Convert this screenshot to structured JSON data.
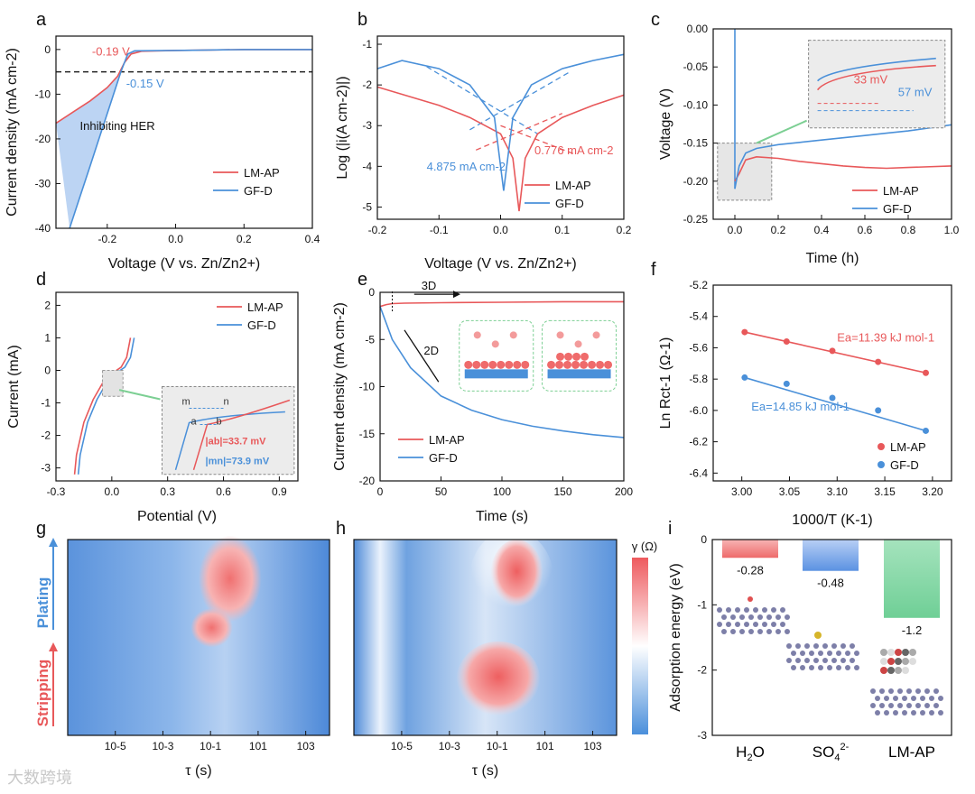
{
  "chart_data": [
    {
      "panel": "a",
      "type": "line",
      "xlabel": "Voltage (V vs. Zn/Zn2+)",
      "ylabel": "Current density (mA cm-2)",
      "xlim": [
        -0.35,
        0.4
      ],
      "ylim": [
        -40,
        3
      ],
      "xticks": [
        "-0.2",
        "0.0",
        "0.2",
        "0.4"
      ],
      "yticks": [
        "0",
        "-10",
        "-20",
        "-30",
        "-40"
      ],
      "series": [
        {
          "name": "LM-AP",
          "color": "#e8585a",
          "x": [
            -0.35,
            -0.3,
            -0.25,
            -0.2,
            -0.17,
            -0.15,
            -0.13,
            -0.1,
            0,
            0.1,
            0.2,
            0.3,
            0.4
          ],
          "y": [
            -16.5,
            -14,
            -11.5,
            -8.5,
            -6,
            -3,
            -1,
            -0.4,
            -0.2,
            -0.1,
            0,
            0,
            0
          ]
        },
        {
          "name": "GF-D",
          "color": "#4a90d9",
          "x": [
            -0.31,
            -0.28,
            -0.25,
            -0.22,
            -0.19,
            -0.16,
            -0.14,
            -0.12,
            0,
            0.1,
            0.2,
            0.3,
            0.4
          ],
          "y": [
            -40,
            -33,
            -26,
            -19,
            -12,
            -5,
            -1,
            -0.3,
            -0.2,
            -0.1,
            0,
            0,
            0
          ]
        }
      ],
      "annotations": [
        "-0.19 V",
        "-0.15 V",
        "Inhibiting HER"
      ]
    },
    {
      "panel": "b",
      "type": "line",
      "xlabel": "Voltage (V vs. Zn/Zn2+)",
      "ylabel": "Log (|i(A cm-2)|)",
      "xlim": [
        -0.2,
        0.2
      ],
      "ylim": [
        -5.3,
        -0.8
      ],
      "xticks": [
        "-0.2",
        "-0.1",
        "0.0",
        "0.1",
        "0.2"
      ],
      "yticks": [
        "-1",
        "-2",
        "-3",
        "-4",
        "-5"
      ],
      "series": [
        {
          "name": "LM-AP",
          "color": "#e8585a",
          "x": [
            -0.2,
            -0.1,
            -0.05,
            0,
            0.02,
            0.03,
            0.04,
            0.06,
            0.1,
            0.15,
            0.2
          ],
          "y": [
            -2.05,
            -2.5,
            -2.8,
            -3.2,
            -3.8,
            -5.1,
            -3.8,
            -3.2,
            -2.8,
            -2.5,
            -2.25
          ]
        },
        {
          "name": "GF-D",
          "color": "#4a90d9",
          "x": [
            -0.2,
            -0.16,
            -0.1,
            -0.05,
            -0.01,
            0.005,
            0.02,
            0.05,
            0.1,
            0.15,
            0.2
          ],
          "y": [
            -1.6,
            -1.4,
            -1.6,
            -2.0,
            -2.8,
            -4.6,
            -2.8,
            -2.0,
            -1.6,
            -1.4,
            -1.25
          ]
        }
      ],
      "annotations": [
        "4.875 mA cm-2",
        "0.776 mA cm-2"
      ]
    },
    {
      "panel": "c",
      "type": "line",
      "xlabel": "Time (h)",
      "ylabel": "Voltage (V)",
      "xlim": [
        -0.1,
        1.0
      ],
      "ylim": [
        -0.25,
        0.0
      ],
      "xticks": [
        "0.0",
        "0.2",
        "0.4",
        "0.6",
        "0.8",
        "1.0"
      ],
      "yticks": [
        "0.00",
        "-0.05",
        "-0.10",
        "-0.15",
        "-0.20",
        "-0.25"
      ],
      "series": [
        {
          "name": "LM-AP",
          "color": "#e8585a",
          "x": [
            0,
            0.02,
            0.05,
            0.1,
            0.2,
            0.3,
            0.4,
            0.5,
            0.6,
            0.7,
            0.8,
            1.0
          ],
          "y": [
            -0.2,
            -0.19,
            -0.172,
            -0.168,
            -0.17,
            -0.174,
            -0.177,
            -0.18,
            -0.182,
            -0.183,
            -0.182,
            -0.18
          ]
        },
        {
          "name": "GF-D",
          "color": "#4a90d9",
          "x": [
            0,
            0.02,
            0.05,
            0.1,
            0.2,
            0.3,
            0.4,
            0.5,
            0.6,
            0.7,
            0.8,
            1.0
          ],
          "y": [
            -0.21,
            -0.18,
            -0.163,
            -0.157,
            -0.152,
            -0.149,
            -0.146,
            -0.143,
            -0.14,
            -0.137,
            -0.134,
            -0.126
          ]
        }
      ],
      "annotations": [
        "33 mV",
        "57 mV"
      ]
    },
    {
      "panel": "d",
      "type": "line",
      "xlabel": "Potential (V)",
      "ylabel": "Current (mA)",
      "xlim": [
        -0.3,
        1.0
      ],
      "ylim": [
        -3.4,
        2.4
      ],
      "xticks": [
        "-0.3",
        "0.0",
        "0.3",
        "0.6",
        "0.9"
      ],
      "yticks": [
        "2",
        "1",
        "0",
        "-1",
        "-2",
        "-3"
      ],
      "series": [
        {
          "name": "LM-AP",
          "color": "#e8585a"
        },
        {
          "name": "GF-D",
          "color": "#4a90d9"
        }
      ],
      "annotations": [
        "m",
        "n",
        "a",
        "b",
        "|ab|=33.7 mV",
        "|mn|=73.9 mV"
      ]
    },
    {
      "panel": "e",
      "type": "line",
      "xlabel": "Time (s)",
      "ylabel": "Current density (mA cm-2)",
      "xlim": [
        0,
        200
      ],
      "ylim": [
        -20,
        0
      ],
      "xticks": [
        "0",
        "50",
        "100",
        "150",
        "200"
      ],
      "yticks": [
        "0",
        "-5",
        "-10",
        "-15",
        "-20"
      ],
      "series": [
        {
          "name": "LM-AP",
          "color": "#e8585a",
          "x": [
            0,
            5,
            10,
            20,
            50,
            100,
            150,
            200
          ],
          "y": [
            -1.5,
            -1.3,
            -1.2,
            -1.15,
            -1.1,
            -1.05,
            -1.0,
            -1.0
          ]
        },
        {
          "name": "GF-D",
          "color": "#4a90d9",
          "x": [
            0,
            10,
            25,
            50,
            75,
            100,
            125,
            150,
            175,
            200
          ],
          "y": [
            -1.5,
            -5,
            -8,
            -11,
            -12.5,
            -13.5,
            -14.2,
            -14.7,
            -15.1,
            -15.4
          ]
        }
      ],
      "annotations": [
        "3D",
        "2D"
      ]
    },
    {
      "panel": "f",
      "type": "scatter",
      "xlabel": "1000/T (K-1)",
      "ylabel": "Ln Rct-1 (Ω-1)",
      "xlim": [
        2.97,
        3.22
      ],
      "ylim": [
        -6.45,
        -5.2
      ],
      "xticks": [
        "3.00",
        "3.05",
        "3.10",
        "3.15",
        "3.20"
      ],
      "yticks": [
        "-5.2",
        "-5.4",
        "-5.6",
        "-5.8",
        "-6.0",
        "-6.2",
        "-6.4"
      ],
      "series": [
        {
          "name": "LM-AP",
          "color": "#e8585a",
          "x": [
            3.003,
            3.047,
            3.095,
            3.143,
            3.193
          ],
          "y": [
            -5.5,
            -5.56,
            -5.62,
            -5.69,
            -5.76
          ]
        },
        {
          "name": "GF-D",
          "color": "#4a90d9",
          "x": [
            3.003,
            3.047,
            3.095,
            3.143,
            3.193
          ],
          "y": [
            -5.79,
            -5.83,
            -5.92,
            -6.0,
            -6.13
          ]
        }
      ],
      "annotations": [
        "Ea=11.39 kJ mol-1",
        "Ea=14.85 kJ mol-1"
      ]
    },
    {
      "panel": "g",
      "type": "heatmap",
      "xlabel": "τ (s)",
      "xticks": [
        "10-5",
        "10-3",
        "10-1",
        "101",
        "103"
      ],
      "side_labels": [
        "Plating",
        "Stripping"
      ]
    },
    {
      "panel": "h",
      "type": "heatmap",
      "xlabel": "τ (s)",
      "xticks": [
        "10-5",
        "10-3",
        "10-1",
        "101",
        "103"
      ],
      "colorbar_label": "γ (Ω)"
    },
    {
      "panel": "i",
      "type": "bar",
      "ylabel": "Adsorption energy (eV)",
      "ylim": [
        -3,
        0
      ],
      "yticks": [
        "0",
        "-1",
        "-2",
        "-3"
      ],
      "categories": [
        "H2O",
        "SO42-",
        "LM-AP"
      ],
      "values": [
        -0.28,
        -0.48,
        -1.2
      ],
      "value_labels": [
        "-0.28",
        "-0.48",
        "-1.2"
      ],
      "colors": [
        "#f07d7d",
        "#6fa0e6",
        "#86d4a4"
      ]
    }
  ],
  "panel_letters": [
    "a",
    "b",
    "c",
    "d",
    "e",
    "f",
    "g",
    "h",
    "i"
  ],
  "watermark": "大数跨境"
}
